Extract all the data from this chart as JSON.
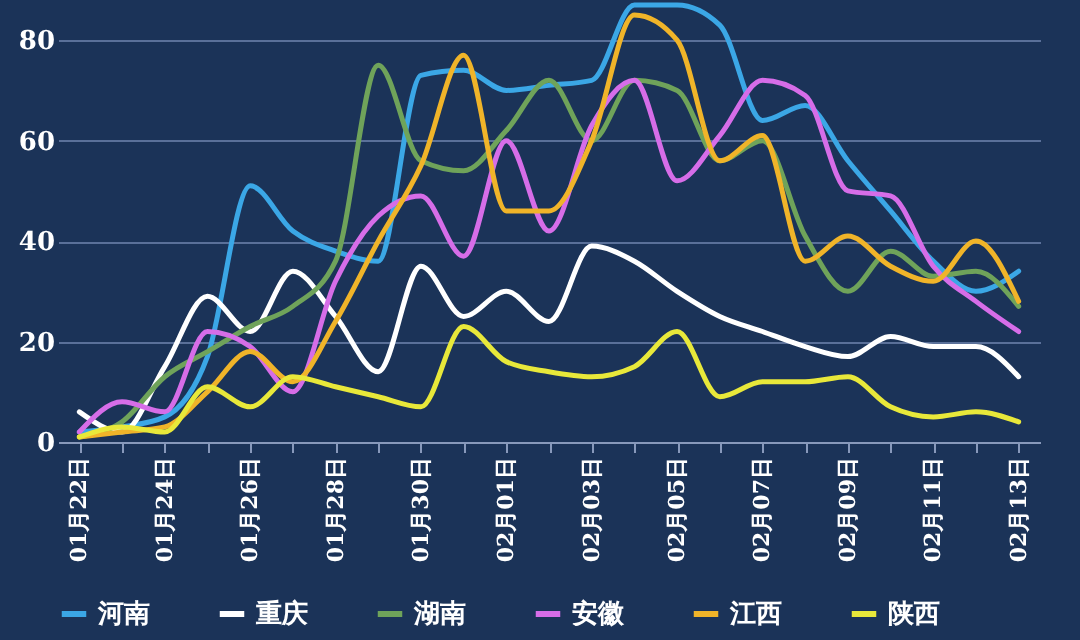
{
  "chart_data": {
    "type": "line",
    "categories": [
      "01月22日",
      null,
      "01月24日",
      null,
      "01月26日",
      null,
      "01月28日",
      null,
      "01月30日",
      null,
      "02月01日",
      null,
      "02月03日",
      null,
      "02月05日",
      null,
      "02月07日",
      null,
      "02月09日",
      null,
      "02月11日",
      null,
      "02月13日"
    ],
    "series": [
      {
        "name": "河南",
        "color": "#3ba7e6",
        "values": [
          2,
          3,
          5,
          17,
          51,
          42,
          38,
          36,
          73,
          74,
          70,
          71,
          72,
          87,
          87,
          83,
          64,
          67,
          56,
          46,
          36,
          30,
          34
        ]
      },
      {
        "name": "重庆",
        "color": "#ffffff",
        "values": [
          6,
          2,
          15,
          29,
          22,
          34,
          25,
          14,
          35,
          25,
          30,
          24,
          39,
          36,
          30,
          25,
          22,
          19,
          17,
          21,
          19,
          19,
          13
        ]
      },
      {
        "name": "湖南",
        "color": "#6fa35a",
        "values": [
          1,
          4,
          13,
          18,
          23,
          27,
          36,
          75,
          56,
          54,
          62,
          72,
          60,
          72,
          70,
          56,
          60,
          41,
          30,
          38,
          33,
          34,
          27
        ]
      },
      {
        "name": "安徽",
        "color": "#d66de8",
        "values": [
          2,
          8,
          6,
          22,
          19,
          10,
          32,
          45,
          49,
          37,
          60,
          42,
          63,
          72,
          52,
          61,
          72,
          69,
          50,
          49,
          35,
          28,
          22
        ]
      },
      {
        "name": "江西",
        "color": "#f0b429",
        "values": [
          1,
          2,
          3,
          10,
          18,
          12,
          24,
          40,
          55,
          77,
          46,
          46,
          60,
          85,
          80,
          56,
          61,
          36,
          41,
          35,
          32,
          40,
          28
        ]
      },
      {
        "name": "陕西",
        "color": "#e8e83a",
        "values": [
          1,
          3,
          2,
          11,
          7,
          13,
          11,
          9,
          7,
          23,
          16,
          14,
          13,
          15,
          22,
          9,
          12,
          12,
          13,
          7,
          5,
          6,
          4
        ]
      }
    ],
    "ylim": [
      0,
      88
    ],
    "yticks": [
      0,
      20,
      40,
      60,
      80
    ],
    "grid": "y",
    "legend": "bottom",
    "marker": "none",
    "line_style": "solid"
  }
}
